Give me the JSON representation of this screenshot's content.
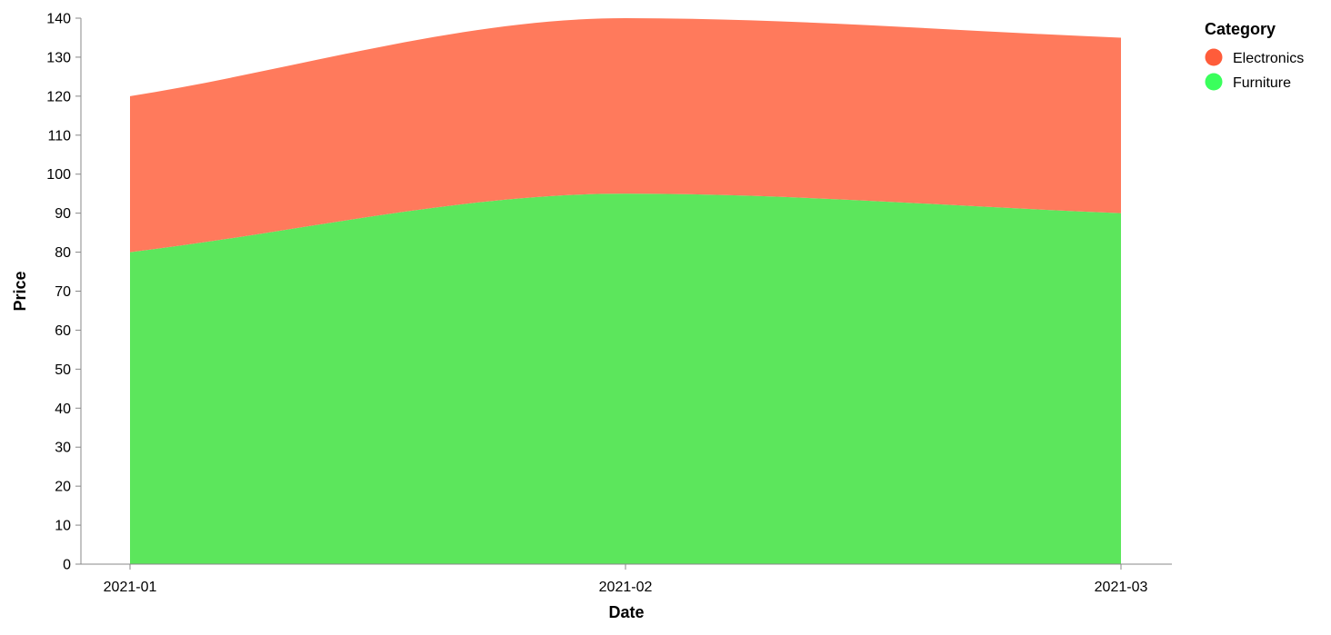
{
  "chart_data": {
    "type": "area",
    "stacked": true,
    "x": [
      "2021-01",
      "2021-02",
      "2021-03"
    ],
    "xlabel": "Date",
    "ylabel": "Price",
    "ylim": [
      0,
      140
    ],
    "yticks": [
      0,
      10,
      20,
      30,
      40,
      50,
      60,
      70,
      80,
      90,
      100,
      110,
      120,
      130,
      140
    ],
    "grid": false,
    "interpolation": "smooth",
    "series": [
      {
        "name": "Furniture",
        "values": [
          80,
          95,
          90
        ],
        "color": "#5ce65c"
      },
      {
        "name": "Electronics",
        "values": [
          40,
          45,
          45
        ],
        "color": "#ff7a5c"
      }
    ],
    "legend": {
      "title": "Category",
      "placement": "top-right",
      "entries": [
        {
          "label": "Electronics",
          "color": "#ff5c3a"
        },
        {
          "label": "Furniture",
          "color": "#3aff5c"
        }
      ]
    }
  }
}
